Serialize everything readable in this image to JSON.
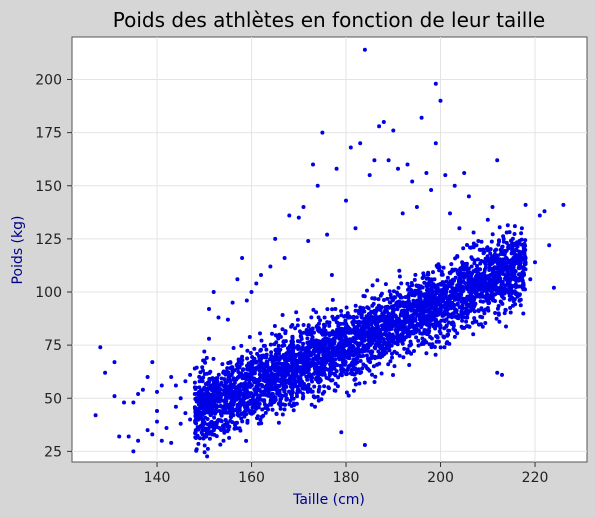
{
  "figure": {
    "background": "#d6d6d6",
    "plot_background": "#ffffff",
    "border_color": "#555555"
  },
  "chart_data": {
    "type": "scatter",
    "title": "Poids des athlètes en fonction de leur taille",
    "xlabel": "Taille (cm)",
    "ylabel": "Poids (kg)",
    "xlim": [
      122,
      231
    ],
    "ylim": [
      20,
      220
    ],
    "xticks": [
      140,
      160,
      180,
      200,
      220
    ],
    "yticks": [
      25,
      50,
      75,
      100,
      125,
      150,
      175,
      200
    ],
    "grid": true,
    "marker_color": "#0000e6",
    "label_color": "#00008b",
    "series": [
      {
        "points": [
          [
            127,
            42
          ],
          [
            128,
            74
          ],
          [
            129,
            62
          ],
          [
            131,
            67
          ],
          [
            131,
            51
          ],
          [
            132,
            32
          ],
          [
            133,
            48
          ],
          [
            134,
            32
          ],
          [
            135,
            48
          ],
          [
            135,
            25
          ],
          [
            136,
            52
          ],
          [
            136,
            30
          ],
          [
            137,
            54
          ],
          [
            138,
            60
          ],
          [
            138,
            35
          ],
          [
            139,
            67
          ],
          [
            139,
            33
          ],
          [
            140,
            44
          ],
          [
            140,
            53
          ],
          [
            140,
            39
          ],
          [
            141,
            56
          ],
          [
            141,
            30
          ],
          [
            142,
            36
          ],
          [
            143,
            60
          ],
          [
            143,
            29
          ],
          [
            144,
            46
          ],
          [
            144,
            56
          ],
          [
            145,
            38
          ],
          [
            145,
            50
          ],
          [
            146,
            58
          ],
          [
            146,
            43
          ],
          [
            147,
            61
          ],
          [
            147,
            40
          ],
          [
            148,
            52
          ],
          [
            148,
            64
          ],
          [
            149,
            58
          ],
          [
            149,
            49
          ],
          [
            150,
            72
          ],
          [
            150,
            55
          ],
          [
            151,
            78
          ],
          [
            151,
            92
          ],
          [
            152,
            100
          ],
          [
            152,
            46
          ],
          [
            153,
            88
          ],
          [
            154,
            62
          ],
          [
            155,
            87
          ],
          [
            156,
            95
          ],
          [
            157,
            106
          ],
          [
            158,
            116
          ],
          [
            159,
            96
          ],
          [
            160,
            100
          ],
          [
            161,
            104
          ],
          [
            162,
            108
          ],
          [
            164,
            112
          ],
          [
            165,
            125
          ],
          [
            167,
            116
          ],
          [
            168,
            136
          ],
          [
            170,
            135
          ],
          [
            171,
            140
          ],
          [
            172,
            124
          ],
          [
            173,
            160
          ],
          [
            174,
            150
          ],
          [
            175,
            175
          ],
          [
            176,
            127
          ],
          [
            177,
            108
          ],
          [
            178,
            158
          ],
          [
            179,
            34
          ],
          [
            180,
            143
          ],
          [
            181,
            168
          ],
          [
            182,
            130
          ],
          [
            183,
            170
          ],
          [
            184,
            214
          ],
          [
            184,
            28
          ],
          [
            185,
            155
          ],
          [
            186,
            162
          ],
          [
            187,
            178
          ],
          [
            188,
            180
          ],
          [
            189,
            162
          ],
          [
            190,
            176
          ],
          [
            191,
            158
          ],
          [
            192,
            137
          ],
          [
            193,
            160
          ],
          [
            194,
            152
          ],
          [
            195,
            140
          ],
          [
            196,
            182
          ],
          [
            197,
            156
          ],
          [
            198,
            148
          ],
          [
            199,
            170
          ],
          [
            199,
            198
          ],
          [
            200,
            190
          ],
          [
            201,
            155
          ],
          [
            202,
            137
          ],
          [
            203,
            150
          ],
          [
            204,
            130
          ],
          [
            205,
            156
          ],
          [
            206,
            145
          ],
          [
            207,
            128
          ],
          [
            208,
            124
          ],
          [
            209,
            120
          ],
          [
            210,
            134
          ],
          [
            211,
            140
          ],
          [
            212,
            162
          ],
          [
            212,
            62
          ],
          [
            213,
            61
          ],
          [
            214,
            128
          ],
          [
            215,
            115
          ],
          [
            216,
            120
          ],
          [
            217,
            115
          ],
          [
            218,
            141
          ],
          [
            219,
            106
          ],
          [
            220,
            114
          ],
          [
            221,
            136
          ],
          [
            222,
            138
          ],
          [
            223,
            122
          ],
          [
            224,
            102
          ],
          [
            226,
            141
          ]
        ]
      }
    ]
  }
}
